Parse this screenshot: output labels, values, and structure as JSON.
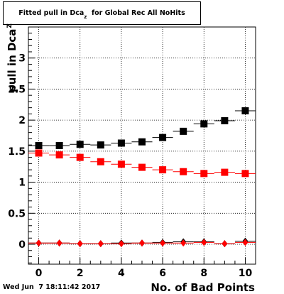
{
  "chart_data": {
    "type": "scatter",
    "title": "Fitted pull in Dca",
    "title_subscript": "z",
    "title_suffix": "  for Global Rec All NoHits",
    "xlabel": "No. of Bad Points",
    "ylabel": "pull in Dca",
    "ylabel_subscript": "Z",
    "xlim": [
      -0.5,
      10.5
    ],
    "ylim": [
      -0.32,
      3.5
    ],
    "x_ticks": [
      0,
      2,
      4,
      6,
      8,
      10
    ],
    "y_ticks": [
      0,
      0.5,
      1,
      1.5,
      2,
      2.5,
      3
    ],
    "grid": true,
    "x": [
      0,
      1,
      2,
      3,
      4,
      5,
      6,
      7,
      8,
      9,
      10
    ],
    "series": [
      {
        "marker": "square",
        "color": "#000000",
        "values": [
          1.59,
          1.59,
          1.61,
          1.6,
          1.63,
          1.65,
          1.72,
          1.82,
          1.94,
          1.99,
          2.15
        ]
      },
      {
        "marker": "square",
        "color": "#ff0000",
        "values": [
          1.47,
          1.44,
          1.4,
          1.33,
          1.29,
          1.24,
          1.2,
          1.17,
          1.14,
          1.16,
          1.14
        ]
      },
      {
        "marker": "diamond",
        "color": "#000000",
        "values": [
          0.02,
          0.02,
          0.01,
          0.01,
          0.02,
          0.02,
          0.03,
          0.04,
          0.04,
          0.01,
          0.05
        ]
      },
      {
        "marker": "diamond",
        "color": "#ff0000",
        "values": [
          0.02,
          0.02,
          0.01,
          0.01,
          0.01,
          0.02,
          0.02,
          0.02,
          0.03,
          0.01,
          0.03
        ]
      }
    ]
  },
  "footer": {
    "datestamp": "Wed Jun  7 18:11:42 2017"
  }
}
